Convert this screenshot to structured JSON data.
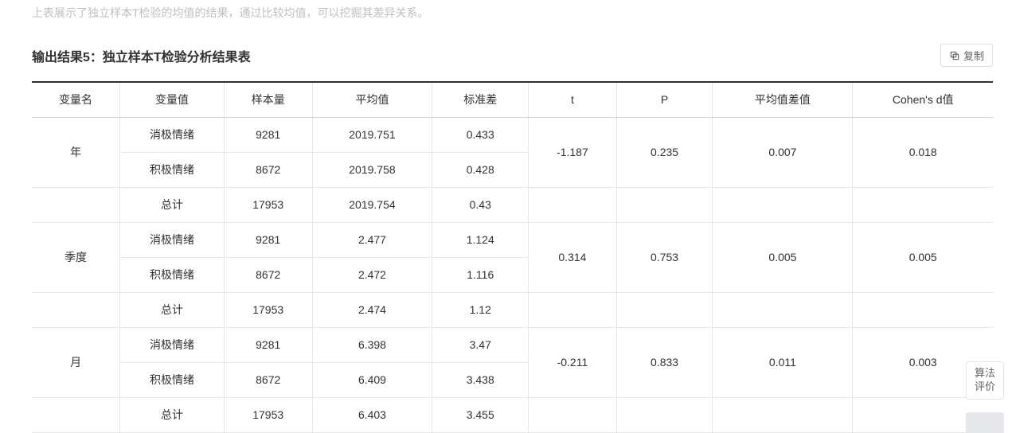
{
  "intro_text": "上表展示了独立样本T检验的均值的结果，通过比较均值，可以挖掘其差异关系。",
  "section_title": "输出结果5：独立样本T检验分析结果表",
  "copy_button_label": "复制",
  "float_button_label": "算法评价",
  "table": {
    "columns": [
      "变量名",
      "变量值",
      "样本量",
      "平均值",
      "标准差",
      "t",
      "P",
      "平均值差值",
      "Cohen's d值"
    ],
    "groups": [
      {
        "var_name": "年",
        "rows": [
          {
            "value": "消极情绪",
            "n": "9281",
            "mean": "2019.751",
            "std": "0.433"
          },
          {
            "value": "积极情绪",
            "n": "8672",
            "mean": "2019.758",
            "std": "0.428"
          }
        ],
        "total": {
          "value": "总计",
          "n": "17953",
          "mean": "2019.754",
          "std": "0.43"
        },
        "t": "-1.187",
        "p": "0.235",
        "mean_diff": "0.007",
        "cohens_d": "0.018"
      },
      {
        "var_name": "季度",
        "rows": [
          {
            "value": "消极情绪",
            "n": "9281",
            "mean": "2.477",
            "std": "1.124"
          },
          {
            "value": "积极情绪",
            "n": "8672",
            "mean": "2.472",
            "std": "1.116"
          }
        ],
        "total": {
          "value": "总计",
          "n": "17953",
          "mean": "2.474",
          "std": "1.12"
        },
        "t": "0.314",
        "p": "0.753",
        "mean_diff": "0.005",
        "cohens_d": "0.005"
      },
      {
        "var_name": "月",
        "rows": [
          {
            "value": "消极情绪",
            "n": "9281",
            "mean": "6.398",
            "std": "3.47"
          },
          {
            "value": "积极情绪",
            "n": "8672",
            "mean": "6.409",
            "std": "3.438"
          }
        ],
        "total": {
          "value": "总计",
          "n": "17953",
          "mean": "6.403",
          "std": "3.455"
        },
        "t": "-0.211",
        "p": "0.833",
        "mean_diff": "0.011",
        "cohens_d": "0.003"
      }
    ]
  },
  "style": {
    "border_top_color": "#303133",
    "cell_border_color": "#e4e7ed",
    "text_color": "#303133",
    "muted_text_color": "#bfbfbf",
    "button_border_color": "#dcdfe6",
    "button_text_color": "#606266",
    "background_color": "#ffffff",
    "font_size_body": 14,
    "font_size_title": 16
  }
}
